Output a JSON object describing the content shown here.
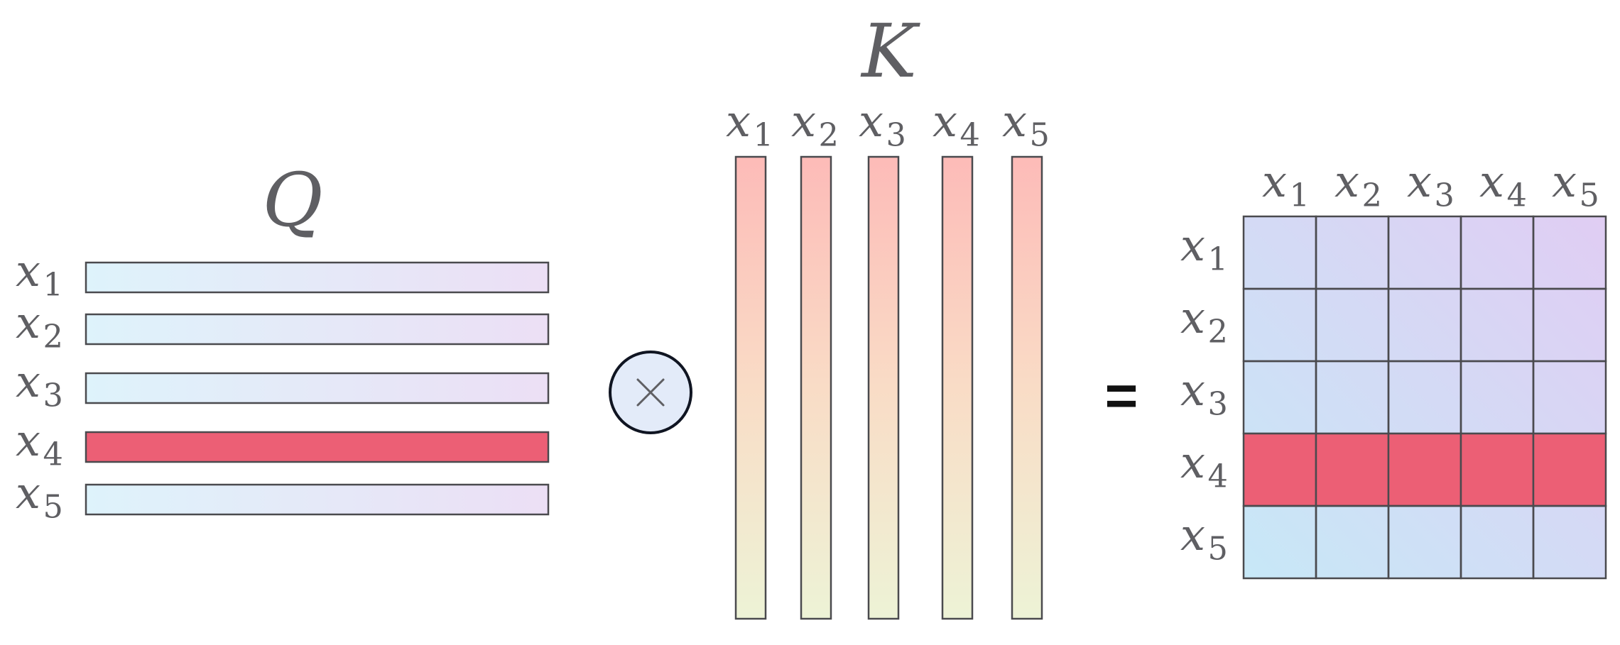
{
  "q_label": "Q",
  "k_label": "K",
  "equals": "=",
  "token_symbol": "x",
  "tokens": [
    "1",
    "2",
    "3",
    "4",
    "5"
  ],
  "highlight_index": 3,
  "colors": {
    "highlight": "#ec5f75",
    "stroke": "#4a4a4e",
    "text": "#5f5f63",
    "q_bar_start": "#def3fb",
    "q_bar_end": "#ecdff5",
    "k_bar_top": "#fdbbb8",
    "k_bar_bottom": "#edf3d6",
    "matrix_a": "#c7e8f7",
    "matrix_b": "#e0cdf3",
    "operator_fill": "#e3ebf9",
    "operator_stroke": "#101522"
  }
}
